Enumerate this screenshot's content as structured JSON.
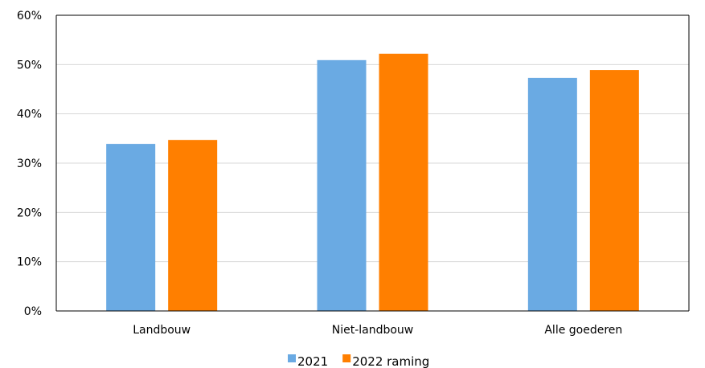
{
  "chart_data": {
    "type": "bar",
    "categories": [
      "Landbouw",
      "Niet-landbouw",
      "Alle goederen"
    ],
    "series": [
      {
        "name": "2021",
        "values": [
          33.9,
          50.9,
          47.3
        ],
        "color": "#6aaae3"
      },
      {
        "name": "2022 raming",
        "values": [
          34.7,
          52.2,
          48.9
        ],
        "color": "#ff7f00"
      }
    ],
    "title": "",
    "xlabel": "",
    "ylabel": "",
    "ylim": [
      0,
      60
    ],
    "yticks": [
      0,
      10,
      20,
      30,
      40,
      50,
      60
    ],
    "ytick_labels": [
      "0%",
      "10%",
      "20%",
      "30%",
      "40%",
      "50%",
      "60%"
    ],
    "grid": true,
    "legend": "bottom"
  }
}
